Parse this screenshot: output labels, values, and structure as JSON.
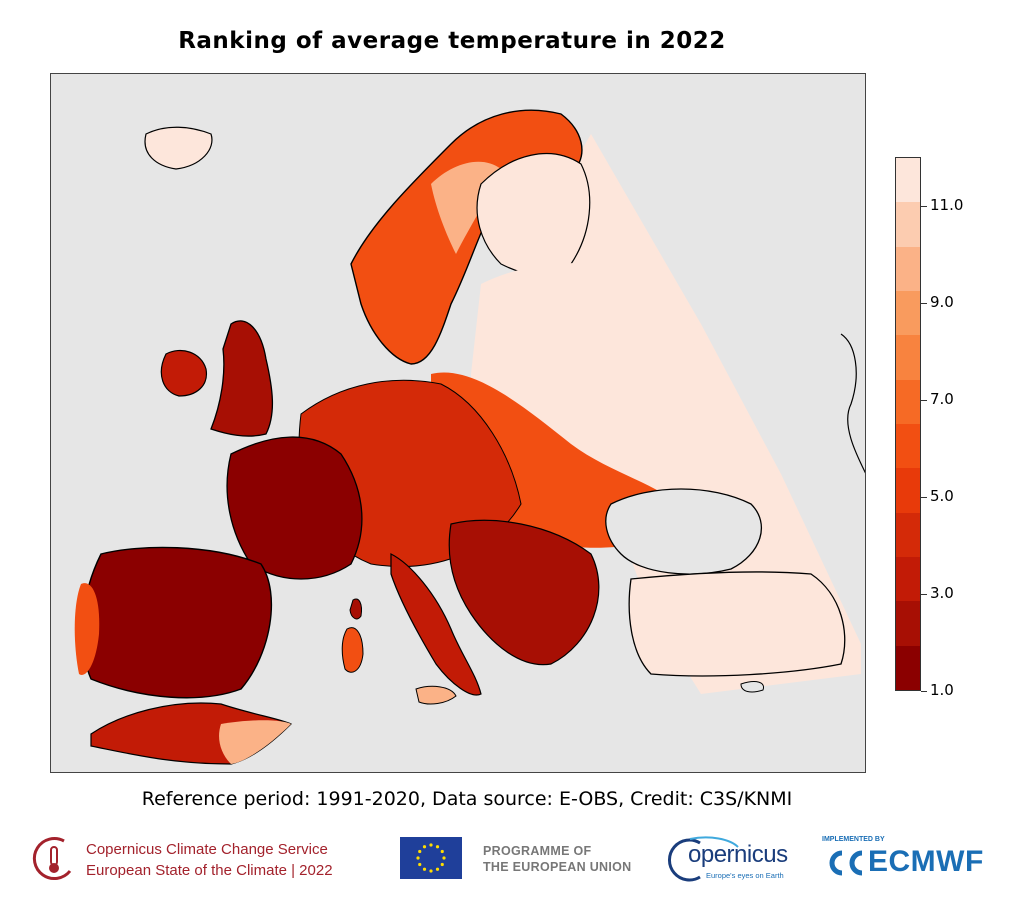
{
  "title": "Ranking of average temperature in 2022",
  "caption": "Reference period: 1991-2020, Data source: E-OBS, Credit: C3S/KNMI",
  "colorbar": {
    "min": 1.0,
    "max": 12.0,
    "tick_labels": [
      "1.0",
      "3.0",
      "5.0",
      "7.0",
      "9.0",
      "11.0"
    ],
    "colors": [
      "#8b0000",
      "#a70f04",
      "#c21b06",
      "#d42a08",
      "#e83a0a",
      "#f24f12",
      "#f66a25",
      "#f8833f",
      "#f99b5e",
      "#fbb287",
      "#fcccb0",
      "#fde6db"
    ]
  },
  "map_colors": {
    "ocean": "#e6e6e6",
    "land_outside": "#e6e6e6",
    "rank_1_2": "#8b0000",
    "rank_3_4": "#c21b06",
    "rank_5_6": "#f24f12",
    "rank_7_8": "#f8833f",
    "rank_9_10": "#fbb287",
    "rank_11_12": "#fde6db",
    "coastline": "#000000"
  },
  "footer": {
    "c3s_line1": "Copernicus Climate Change Service",
    "c3s_line2": "European State of the Climate | 2022",
    "eu_line1": "PROGRAMME OF",
    "eu_line2": "THE EUROPEAN UNION",
    "copernicus": "opernicus",
    "copernicus_tag": "Europe's eyes on Earth",
    "ecmwf_small": "IMPLEMENTED BY",
    "ecmwf": "ECMWF"
  }
}
